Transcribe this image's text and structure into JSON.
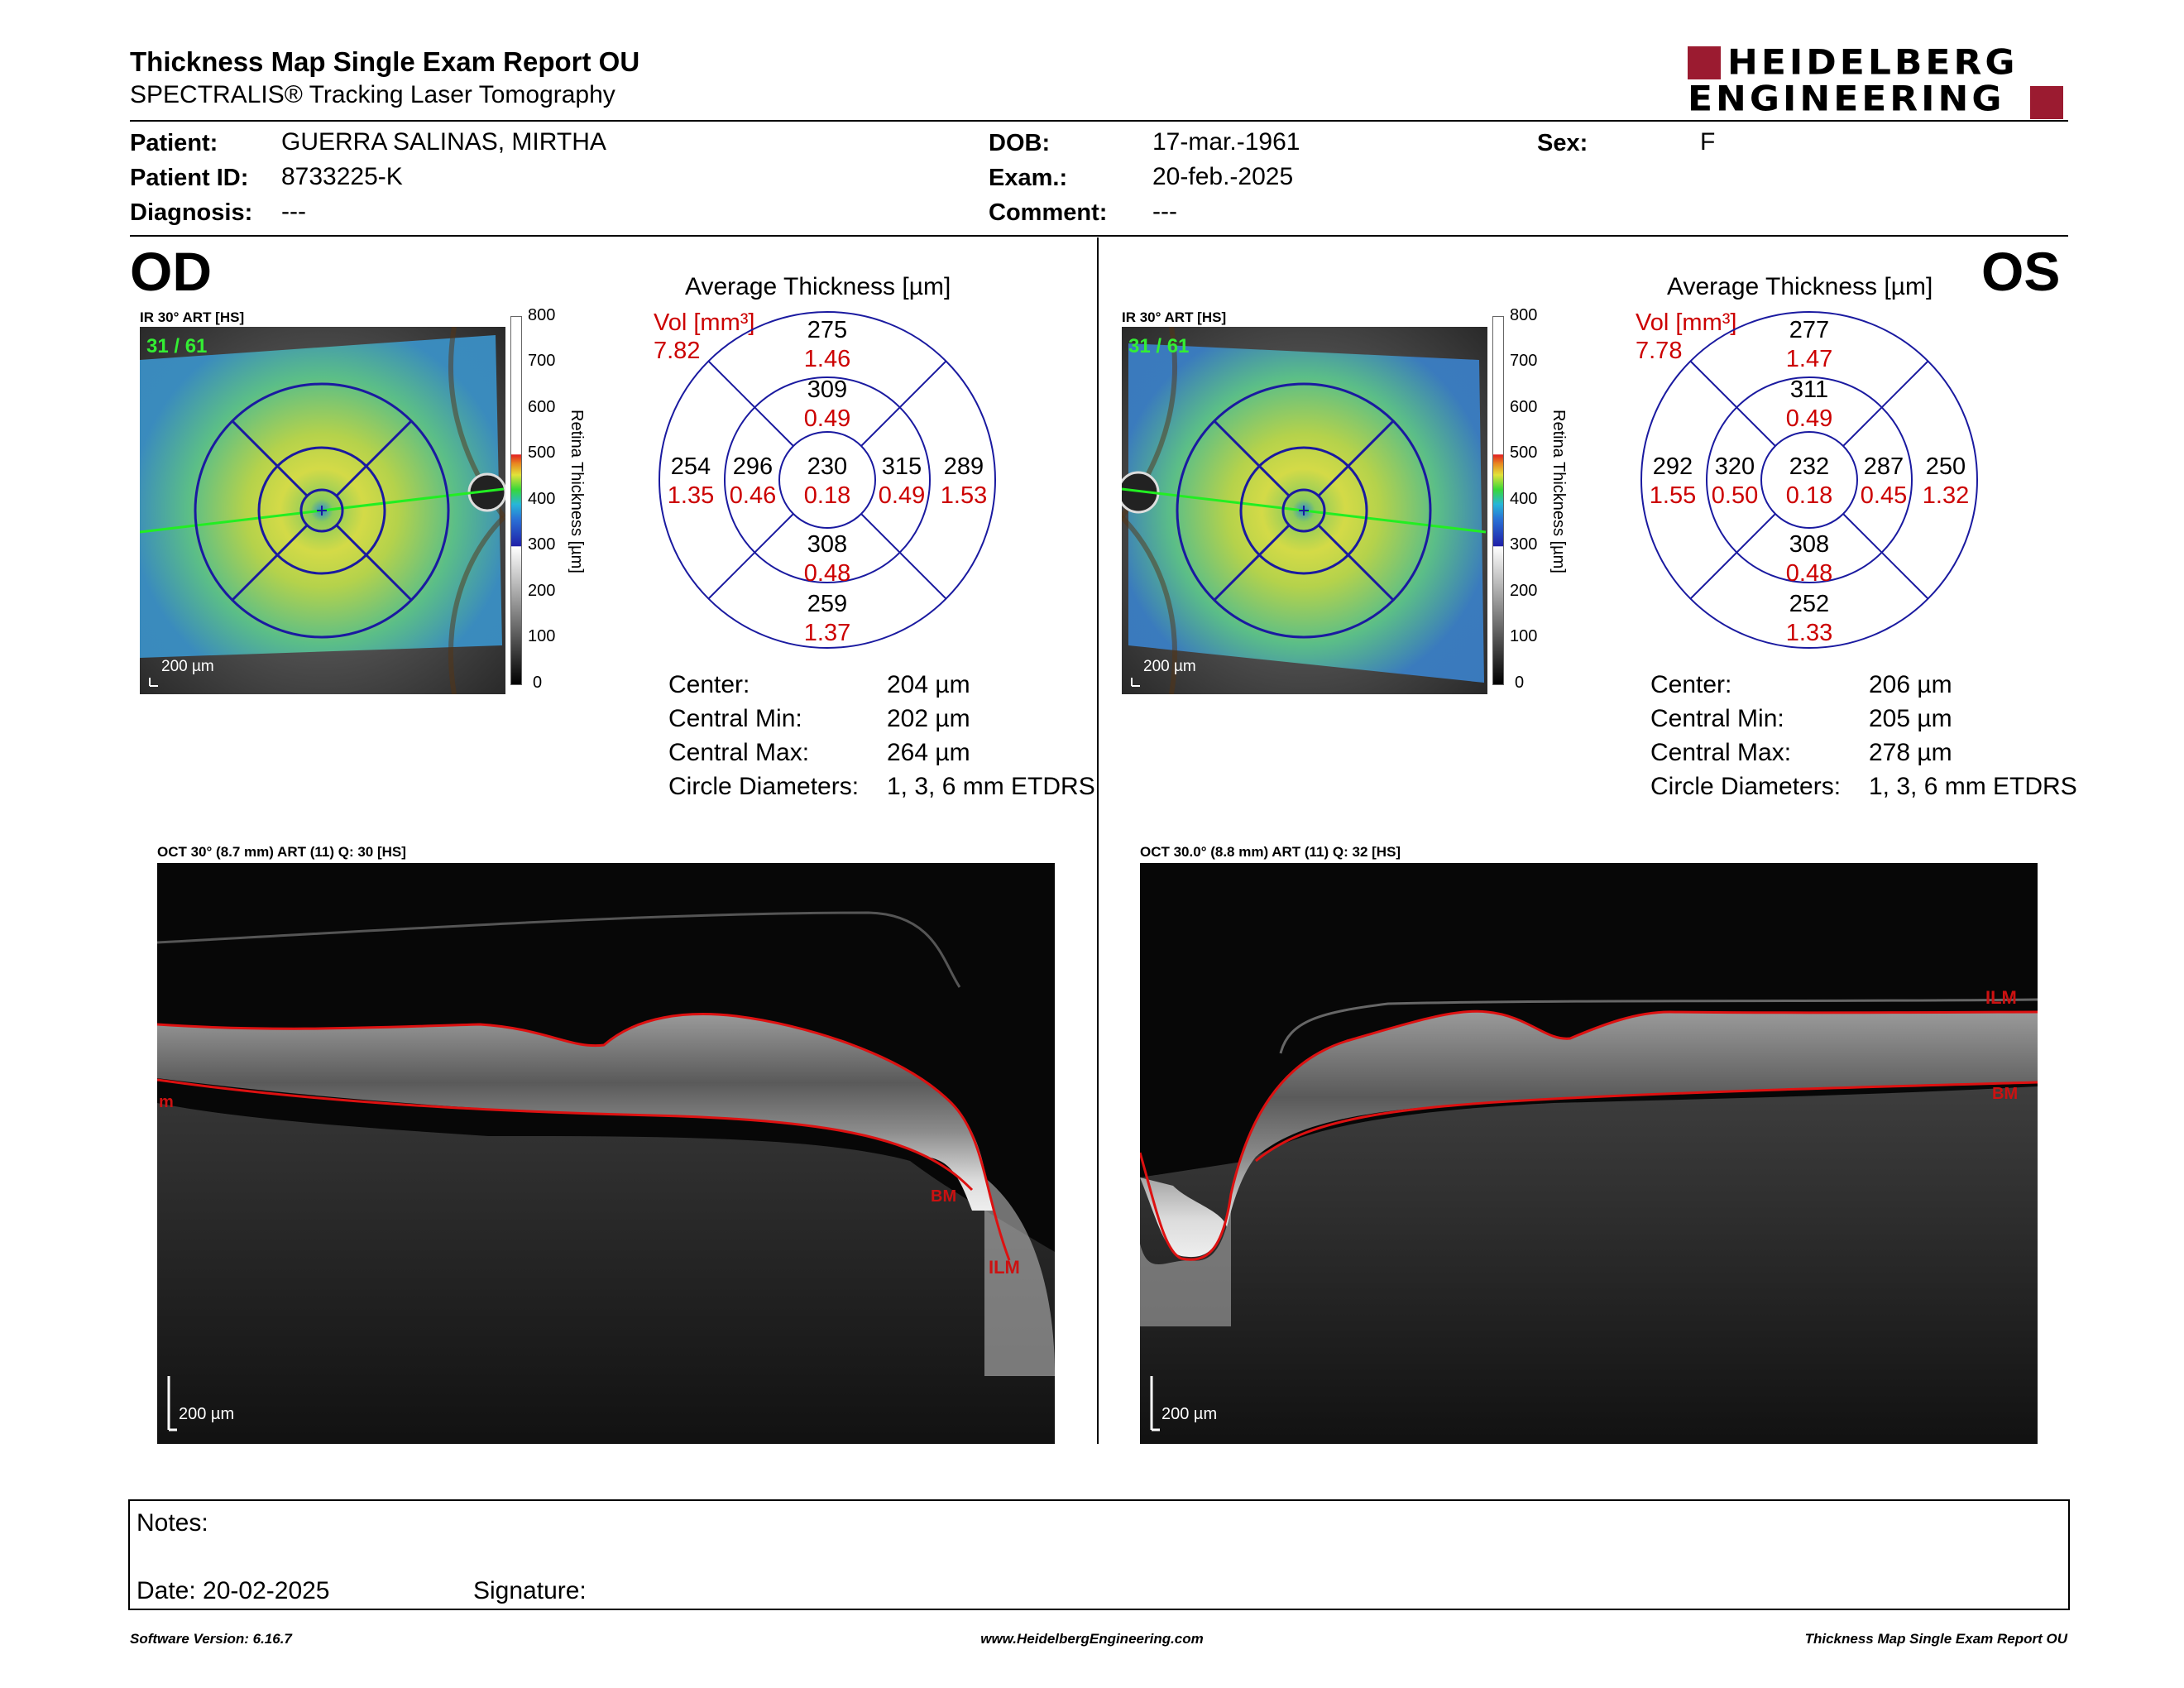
{
  "header": {
    "title": "Thickness Map Single Exam Report OU",
    "subtitle": "SPECTRALIS® Tracking Laser Tomography",
    "logo_line1": "HEIDELBERG",
    "logo_line2": "ENGINEERING"
  },
  "patient": {
    "patient_label": "Patient:",
    "patient_value": "GUERRA SALINAS, MIRTHA",
    "id_label": "Patient ID:",
    "id_value": "8733225-K",
    "diag_label": "Diagnosis:",
    "diag_value": "---",
    "dob_label": "DOB:",
    "dob_value": "17-mar.-1961",
    "exam_label": "Exam.:",
    "exam_value": "20-feb.-2025",
    "comment_label": "Comment:",
    "comment_value": "---",
    "sex_label": "Sex:",
    "sex_value": "F"
  },
  "colorbar": {
    "ticks": [
      "800",
      "700",
      "600",
      "500",
      "400",
      "300",
      "200",
      "100",
      "0"
    ],
    "title": "Retina Thickness [µm]"
  },
  "eyes": {
    "od": {
      "label": "OD",
      "map_title": "IR 30° ART [HS]",
      "map_count": "31 / 61",
      "map_scale": "200 µm",
      "avg_title": "Average Thickness [µm]",
      "vol_label": "Vol [mm³]",
      "vol_value": "7.82",
      "grid": {
        "center": {
          "t": "230",
          "v": "0.18"
        },
        "inner_top": {
          "t": "309",
          "v": "0.49"
        },
        "inner_bottom": {
          "t": "308",
          "v": "0.48"
        },
        "inner_left": {
          "t": "296",
          "v": "0.46"
        },
        "inner_right": {
          "t": "315",
          "v": "0.49"
        },
        "outer_top": {
          "t": "275",
          "v": "1.46"
        },
        "outer_bottom": {
          "t": "259",
          "v": "1.37"
        },
        "outer_left": {
          "t": "254",
          "v": "1.35"
        },
        "outer_right": {
          "t": "289",
          "v": "1.53"
        }
      },
      "stats": [
        {
          "label": "Center:",
          "value": "204 µm"
        },
        {
          "label": "Central Min:",
          "value": "202 µm"
        },
        {
          "label": "Central Max:",
          "value": "264 µm"
        },
        {
          "label": "Circle Diameters:",
          "value": "1, 3, 6 mm ETDRS"
        }
      ],
      "oct_title": "OCT 30° (8.7 mm) ART (11) Q: 30 [HS]",
      "oct_scale": "200 µm",
      "oct_labels": {
        "ilm": "ILM",
        "bm": "BM",
        "edge": "m"
      }
    },
    "os": {
      "label": "OS",
      "map_title": "IR 30° ART [HS]",
      "map_count": "31 / 61",
      "map_scale": "200 µm",
      "avg_title": "Average Thickness [µm]",
      "vol_label": "Vol [mm³]",
      "vol_value": "7.78",
      "grid": {
        "center": {
          "t": "232",
          "v": "0.18"
        },
        "inner_top": {
          "t": "311",
          "v": "0.49"
        },
        "inner_bottom": {
          "t": "308",
          "v": "0.48"
        },
        "inner_left": {
          "t": "320",
          "v": "0.50"
        },
        "inner_right": {
          "t": "287",
          "v": "0.45"
        },
        "outer_top": {
          "t": "277",
          "v": "1.47"
        },
        "outer_bottom": {
          "t": "252",
          "v": "1.33"
        },
        "outer_left": {
          "t": "292",
          "v": "1.55"
        },
        "outer_right": {
          "t": "250",
          "v": "1.32"
        }
      },
      "stats": [
        {
          "label": "Center:",
          "value": "206 µm"
        },
        {
          "label": "Central Min:",
          "value": "205 µm"
        },
        {
          "label": "Central Max:",
          "value": "278 µm"
        },
        {
          "label": "Circle Diameters:",
          "value": "1, 3, 6 mm ETDRS"
        }
      ],
      "oct_title": "OCT 30.0° (8.8 mm) ART (11) Q: 32 [HS]",
      "oct_scale": "200 µm",
      "oct_labels": {
        "ilm": "ILM",
        "bm": "BM"
      }
    }
  },
  "notes": {
    "notes_label": "Notes:",
    "date_label": "Date: 20-02-2025",
    "signature_label": "Signature:"
  },
  "footer": {
    "left": "Software Version: 6.16.7",
    "center": "www.HeidelbergEngineering.com",
    "right": "Thickness Map Single Exam Report OU"
  },
  "colors": {
    "grid_blue": "#1a1aa0",
    "value_red": "#cc0000",
    "brand_red": "#9b1b30",
    "count_green": "#33ee33"
  }
}
